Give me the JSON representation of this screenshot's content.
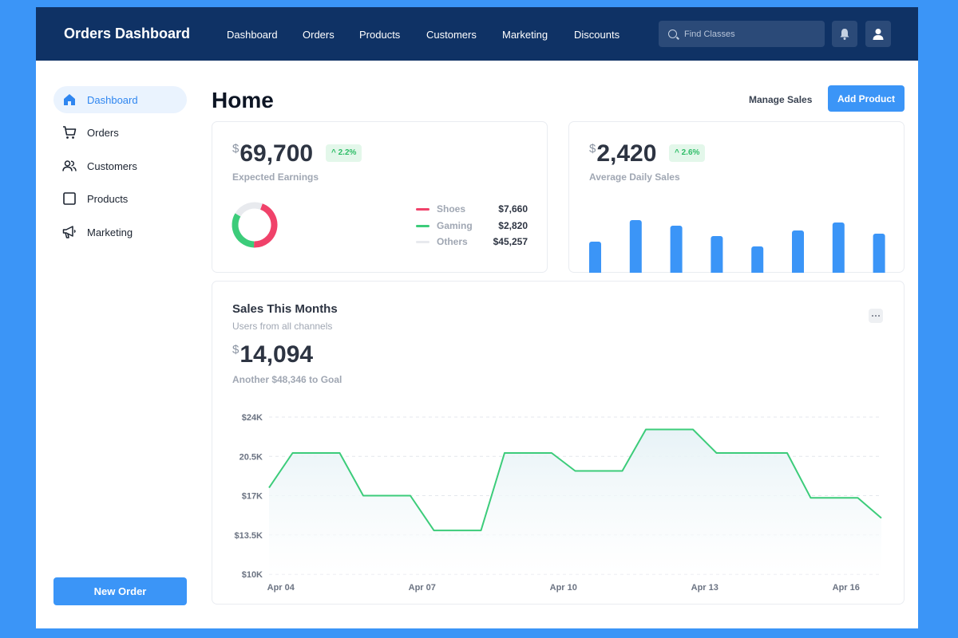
{
  "topbar": {
    "brand": "Orders Dashboard",
    "nav": [
      "Dashboard",
      "Orders",
      "Products",
      "Customers",
      "Marketing",
      "Discounts"
    ],
    "search_placeholder": "Find Classes"
  },
  "sidebar": {
    "items": [
      {
        "label": "Dashboard",
        "icon": "home-icon",
        "active": true
      },
      {
        "label": "Orders",
        "icon": "cart-icon",
        "active": false
      },
      {
        "label": "Customers",
        "icon": "users-icon",
        "active": false
      },
      {
        "label": "Products",
        "icon": "box-icon",
        "active": false
      },
      {
        "label": "Marketing",
        "icon": "megaphone-icon",
        "active": false
      }
    ],
    "new_order_label": "New Order"
  },
  "header": {
    "title": "Home",
    "manage_sales_label": "Manage Sales",
    "add_product_label": "Add Product"
  },
  "earnings": {
    "currency": "$",
    "value": "69,700",
    "change": "2.2%",
    "label": "Expected Earnings",
    "legend": [
      {
        "name": "Shoes",
        "value": "$7,660",
        "color": "#f0426a"
      },
      {
        "name": "Gaming",
        "value": "$2,820",
        "color": "#3ccc7a"
      },
      {
        "name": "Others",
        "value": "$45,257",
        "color": "#e8eaee"
      }
    ]
  },
  "daily_sales": {
    "currency": "$",
    "value": "2,420",
    "change": "2.6%",
    "label": "Average Daily Sales"
  },
  "sales_month": {
    "title": "Sales This Months",
    "subtitle": "Users from all channels",
    "currency": "$",
    "value": "14,094",
    "goal_text": "Another $48,346 to Goal"
  },
  "colors": {
    "accent": "#3b95f7",
    "navbar": "#0f3265",
    "positive": "#2ebd67",
    "line": "#3ccc7a"
  },
  "chart_data": [
    {
      "type": "pie",
      "title": "",
      "categories": [
        "Shoes",
        "Gaming",
        "Others"
      ],
      "values": [
        0.45,
        0.33,
        0.22
      ],
      "colors": [
        "#f0426a",
        "#3ccc7a",
        "#e8eaee"
      ],
      "style": "donut"
    },
    {
      "type": "bar",
      "title": "",
      "categories": [
        "1",
        "2",
        "3",
        "4",
        "5",
        "6",
        "7",
        "8"
      ],
      "values": [
        39,
        66,
        59,
        46,
        33,
        53,
        63,
        49
      ],
      "ylim": [
        0,
        66
      ],
      "color": "#3b95f7"
    },
    {
      "type": "area",
      "title": "",
      "xlabel": "",
      "ylabel": "",
      "x_tick_labels": [
        "Apr 04",
        "Apr 07",
        "Apr 10",
        "Apr 13",
        "Apr 16"
      ],
      "y_tick_labels": [
        "$24K",
        "20.5K",
        "$17K",
        "$13.5K",
        "$10K"
      ],
      "y_ticks": [
        24000,
        20500,
        17000,
        13500,
        10000
      ],
      "ylim": [
        10000,
        24000
      ],
      "grid": true,
      "color": "#3ccc7a",
      "points": [
        {
          "x": 3.75,
          "y": 17700
        },
        {
          "x": 4.25,
          "y": 20800
        },
        {
          "x": 5.25,
          "y": 20800
        },
        {
          "x": 5.75,
          "y": 17000
        },
        {
          "x": 6.75,
          "y": 17000
        },
        {
          "x": 7.25,
          "y": 13900
        },
        {
          "x": 8.25,
          "y": 13900
        },
        {
          "x": 8.75,
          "y": 20800
        },
        {
          "x": 9.75,
          "y": 20800
        },
        {
          "x": 10.25,
          "y": 19200
        },
        {
          "x": 11.25,
          "y": 19200
        },
        {
          "x": 11.75,
          "y": 22900
        },
        {
          "x": 12.75,
          "y": 22900
        },
        {
          "x": 13.25,
          "y": 20800
        },
        {
          "x": 14.75,
          "y": 20800
        },
        {
          "x": 15.25,
          "y": 16800
        },
        {
          "x": 16.25,
          "y": 16800
        },
        {
          "x": 16.75,
          "y": 15000
        }
      ]
    }
  ]
}
